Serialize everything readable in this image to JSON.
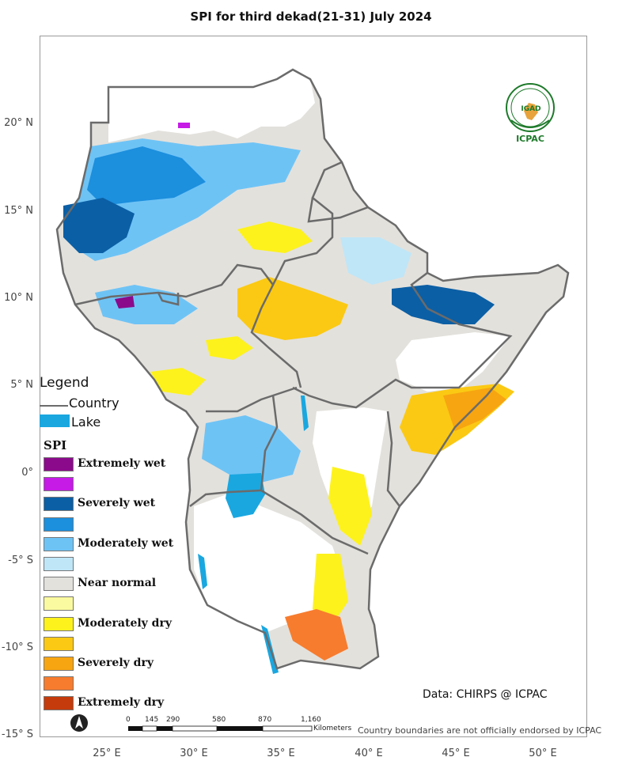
{
  "title": "SPI  for  third dekad(21-31) July 2024",
  "latitude_ticks": [
    "20° N",
    "15° N",
    "10° N",
    "5° N",
    "0°",
    "-5° S",
    "-10° S",
    "-15° S"
  ],
  "longitude_ticks": [
    "25° E",
    "30° E",
    "35° E",
    "40° E",
    "45° E",
    "50° E"
  ],
  "legend": {
    "title": "Legend",
    "country_label": "Country",
    "lake_label": "Lake",
    "lake_color": "#1aa7e0",
    "spi_title": "SPI",
    "classes": [
      {
        "label": "Extremely wet",
        "color": "#8b0a8b"
      },
      {
        "label": "",
        "color": "#c61ae6"
      },
      {
        "label": "Severely wet",
        "color": "#0b5fa5"
      },
      {
        "label": "",
        "color": "#1c8fdd"
      },
      {
        "label": "Moderately wet",
        "color": "#6ec3f5"
      },
      {
        "label": "",
        "color": "#bfe6f7"
      },
      {
        "label": "Near normal",
        "color": "#e3e1dc"
      },
      {
        "label": "",
        "color": "#fafaa0"
      },
      {
        "label": "Moderately dry",
        "color": "#fdf21c"
      },
      {
        "label": "",
        "color": "#fbc913"
      },
      {
        "label": "Severely dry",
        "color": "#f7a511"
      },
      {
        "label": "",
        "color": "#f77c2e"
      },
      {
        "label": "Extremely dry",
        "color": "#c53b0b"
      }
    ]
  },
  "scale_bar": {
    "labels": [
      "0",
      "145",
      "290",
      "580",
      "870",
      "1,160"
    ],
    "unit": "Kilometers"
  },
  "source": "Data: CHIRPS @ ICPAC",
  "disclaimer": "Country boundaries are not officially endorsed by ICPAC",
  "logo": {
    "top_text": "IGAD",
    "bottom_text": "ICPAC",
    "color": "#1d7a2a"
  },
  "north_arrow_icon": "north-arrow-icon"
}
